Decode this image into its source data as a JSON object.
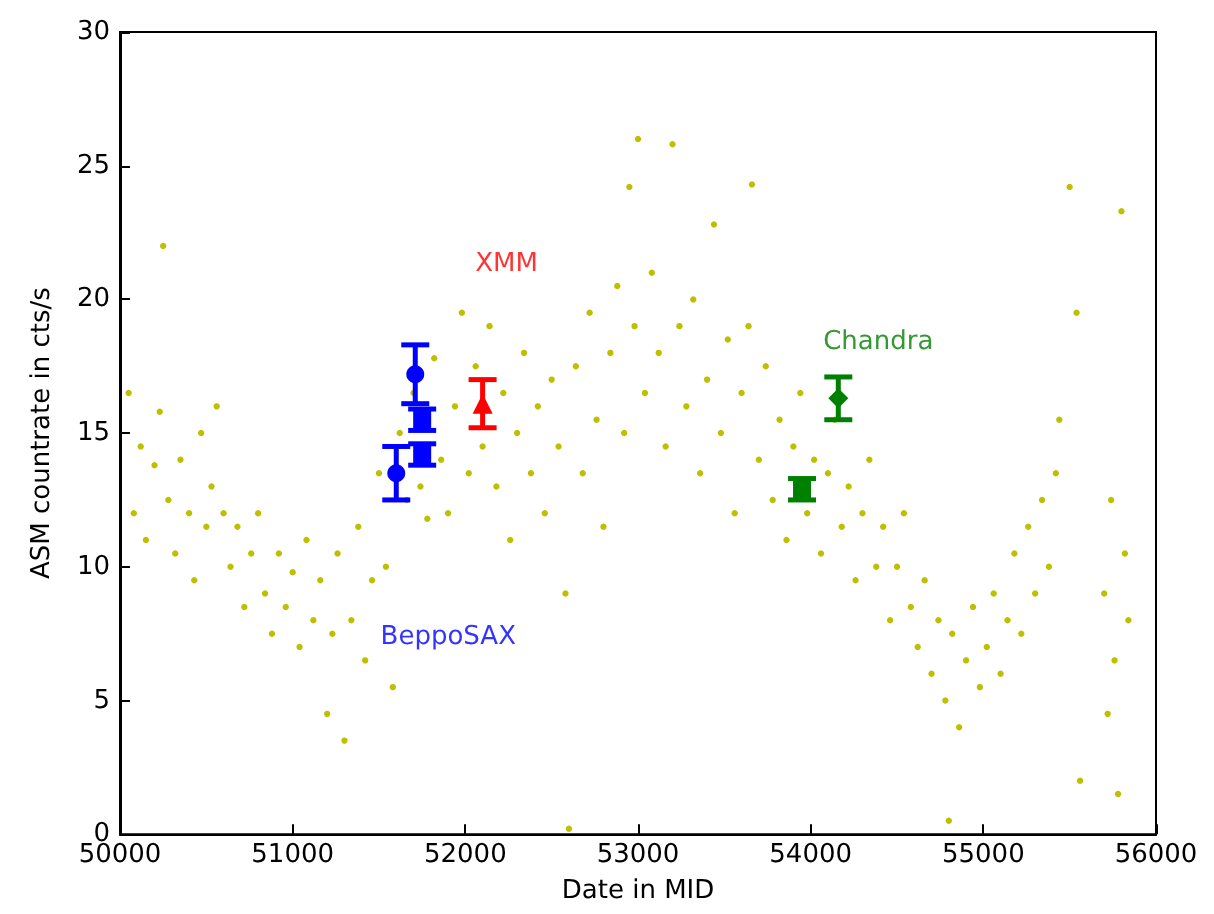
{
  "chart_data": {
    "type": "scatter",
    "xlabel": "Date in MID",
    "ylabel": "ASM countrate in cts/s",
    "xlim": [
      50000,
      56000
    ],
    "xticks": [
      50000,
      51000,
      52000,
      53000,
      54000,
      55000,
      56000
    ],
    "ylim": [
      0,
      30
    ],
    "yticks": [
      0,
      5,
      10,
      15,
      20,
      25,
      30
    ],
    "grid": false,
    "series": [
      {
        "color": "#bfbf00",
        "marker": "circle",
        "x": [
          50050,
          50080,
          50120,
          50150,
          50200,
          50230,
          50250,
          50280,
          50320,
          50350,
          50400,
          50430,
          50470,
          50500,
          50530,
          50560,
          50600,
          50640,
          50680,
          50720,
          50760,
          50800,
          50840,
          50880,
          50920,
          50960,
          51000,
          51040,
          51080,
          51120,
          51160,
          51200,
          51230,
          51260,
          51300,
          51340,
          51380,
          51420,
          51460,
          51500,
          51540,
          51580,
          51620,
          51660,
          51700,
          51740,
          51780,
          51820,
          51860,
          51900,
          51940,
          51980,
          52020,
          52060,
          52100,
          52140,
          52180,
          52220,
          52260,
          52300,
          52340,
          52380,
          52420,
          52460,
          52500,
          52540,
          52580,
          52600,
          52640,
          52680,
          52720,
          52760,
          52800,
          52840,
          52880,
          52920,
          52950,
          52980,
          53000,
          53040,
          53080,
          53120,
          53160,
          53200,
          53240,
          53280,
          53320,
          53360,
          53400,
          53440,
          53480,
          53520,
          53560,
          53600,
          53640,
          53660,
          53700,
          53740,
          53780,
          53820,
          53860,
          53900,
          53940,
          53980,
          54020,
          54060,
          54100,
          54140,
          54180,
          54220,
          54260,
          54300,
          54340,
          54380,
          54420,
          54460,
          54500,
          54540,
          54580,
          54620,
          54660,
          54700,
          54740,
          54780,
          54800,
          54820,
          54860,
          54900,
          54940,
          54980,
          55020,
          55060,
          55100,
          55140,
          55180,
          55220,
          55260,
          55300,
          55340,
          55380,
          55420,
          55440,
          55500,
          55540,
          55560,
          55700,
          55720,
          55740,
          55760,
          55780,
          55800,
          55820,
          55840
        ],
        "values": [
          16.5,
          12.0,
          14.5,
          11.0,
          13.8,
          15.8,
          22.0,
          12.5,
          10.5,
          14.0,
          12.0,
          9.5,
          15.0,
          11.5,
          13.0,
          16.0,
          12.0,
          10.0,
          11.5,
          8.5,
          10.5,
          12.0,
          9.0,
          7.5,
          10.5,
          8.5,
          9.8,
          7.0,
          11.0,
          8.0,
          9.5,
          4.5,
          7.5,
          10.5,
          3.5,
          8.0,
          11.5,
          6.5,
          9.5,
          13.5,
          10.0,
          5.5,
          15.0,
          12.5,
          16.5,
          13.0,
          11.8,
          17.8,
          14.0,
          12.0,
          16.0,
          19.5,
          13.5,
          17.5,
          14.5,
          19.0,
          13.0,
          16.5,
          11.0,
          15.0,
          18.0,
          13.5,
          16.0,
          12.0,
          17.0,
          14.5,
          9.0,
          0.2,
          17.5,
          13.5,
          19.5,
          15.5,
          11.5,
          18.0,
          20.5,
          15.0,
          24.2,
          19.0,
          26.0,
          16.5,
          21.0,
          18.0,
          14.5,
          25.8,
          19.0,
          16.0,
          20.0,
          13.5,
          17.0,
          22.8,
          15.0,
          18.5,
          12.0,
          16.5,
          19.0,
          24.3,
          14.0,
          17.5,
          12.5,
          15.5,
          11.0,
          14.5,
          16.5,
          12.0,
          14.0,
          10.5,
          13.5,
          15.5,
          11.5,
          13.0,
          9.5,
          12.0,
          14.0,
          10.0,
          11.5,
          8.0,
          10.0,
          12.0,
          8.5,
          7.0,
          9.5,
          6.0,
          8.0,
          5.0,
          0.5,
          7.5,
          4.0,
          6.5,
          8.5,
          5.5,
          7.0,
          9.0,
          6.0,
          8.0,
          10.5,
          7.5,
          11.5,
          9.0,
          12.5,
          10.0,
          13.5,
          15.5,
          24.2,
          19.5,
          2.0,
          9.0,
          4.5,
          12.5,
          6.5,
          1.5,
          23.3,
          10.5,
          8.0
        ]
      },
      {
        "name": "BeppoSAX",
        "color": "#0000ff",
        "marker": "circle",
        "x": [
          51600,
          51710
        ],
        "values": [
          13.5,
          17.2
        ],
        "errors": [
          1.0,
          1.1
        ]
      },
      {
        "color": "#0000ff",
        "marker": "square",
        "x": [
          51750,
          51750
        ],
        "values": [
          15.5,
          14.2
        ],
        "errors": [
          0.4,
          0.4
        ]
      },
      {
        "name": "XMM",
        "color": "#ff0000",
        "marker": "triangle",
        "x": [
          52100
        ],
        "values": [
          16.1
        ],
        "errors": [
          0.9
        ]
      },
      {
        "name": "Chandra",
        "color": "#008000",
        "marker": "diamond",
        "x": [
          54160
        ],
        "values": [
          16.3
        ],
        "errors": [
          0.8
        ]
      },
      {
        "color": "#008000",
        "marker": "square",
        "x": [
          53950
        ],
        "values": [
          12.9
        ],
        "errors": [
          0.4
        ]
      }
    ]
  }
}
